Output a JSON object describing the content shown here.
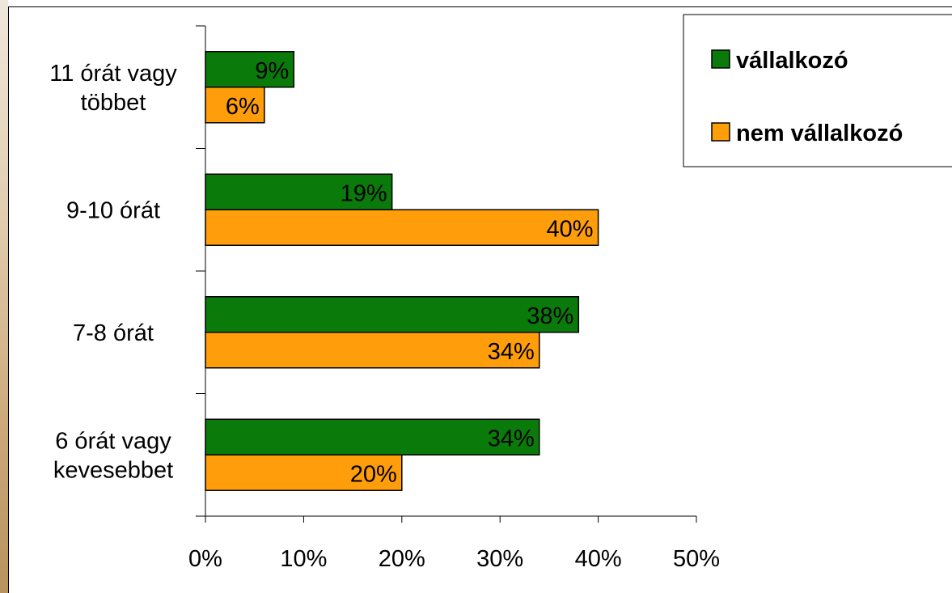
{
  "chart_data": {
    "type": "bar",
    "orientation": "horizontal",
    "title": "",
    "xlabel": "",
    "ylabel": "",
    "categories": [
      [
        "6 órát vagy",
        "kevesebbet"
      ],
      [
        "7-8 órát"
      ],
      [
        "9-10 órát"
      ],
      [
        "11 órát vagy",
        "többet"
      ]
    ],
    "series": [
      {
        "name": "vállalkozó",
        "values": [
          34,
          38,
          19,
          9
        ],
        "labels": [
          "34%",
          "38%",
          "19%",
          "9%"
        ],
        "color": "#0a7a0a"
      },
      {
        "name": "nem vállalkozó",
        "values": [
          20,
          34,
          40,
          6
        ],
        "labels": [
          "20%",
          "34%",
          "40%",
          "6%"
        ],
        "color": "#ff9e0a"
      }
    ],
    "xlim": [
      0,
      50
    ],
    "x_ticks": [
      0,
      10,
      20,
      30,
      40,
      50
    ],
    "x_tick_labels": [
      "0%",
      "10%",
      "20%",
      "30%",
      "40%",
      "50%"
    ],
    "grid": false,
    "legend": {
      "position": "top-right",
      "entries": [
        "vállalkozó",
        "nem vállalkozó"
      ]
    }
  }
}
